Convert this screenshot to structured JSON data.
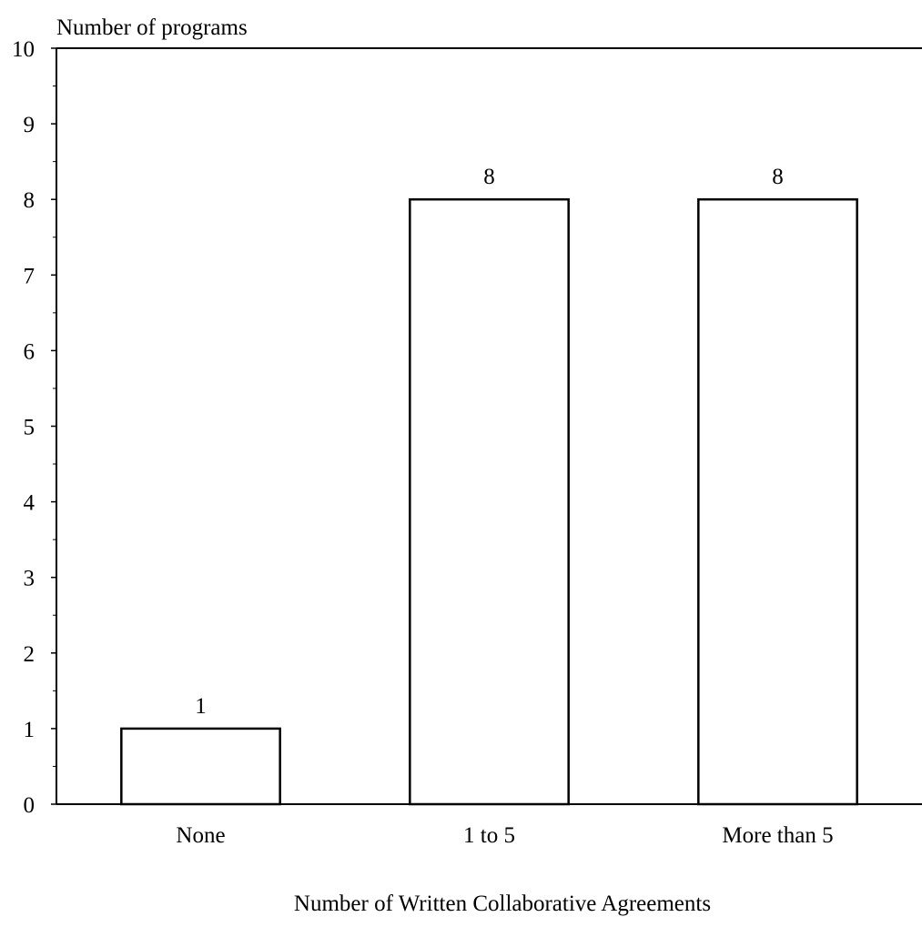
{
  "chart_data": {
    "type": "bar",
    "title": "",
    "ylabel": "Number of programs",
    "xlabel": "Number of Written Collaborative Agreements",
    "categories": [
      "None",
      "1 to 5",
      "More than 5"
    ],
    "values": [
      1,
      8,
      8
    ],
    "data_labels": [
      "1",
      "8",
      "8"
    ],
    "ylim": [
      0,
      10
    ],
    "yticks": [
      "0",
      "1",
      "2",
      "3",
      "4",
      "5",
      "6",
      "7",
      "8",
      "9",
      "10"
    ],
    "grid": false,
    "legend": "none",
    "bar_fill": "#ffffff",
    "bar_stroke": "#000000"
  }
}
